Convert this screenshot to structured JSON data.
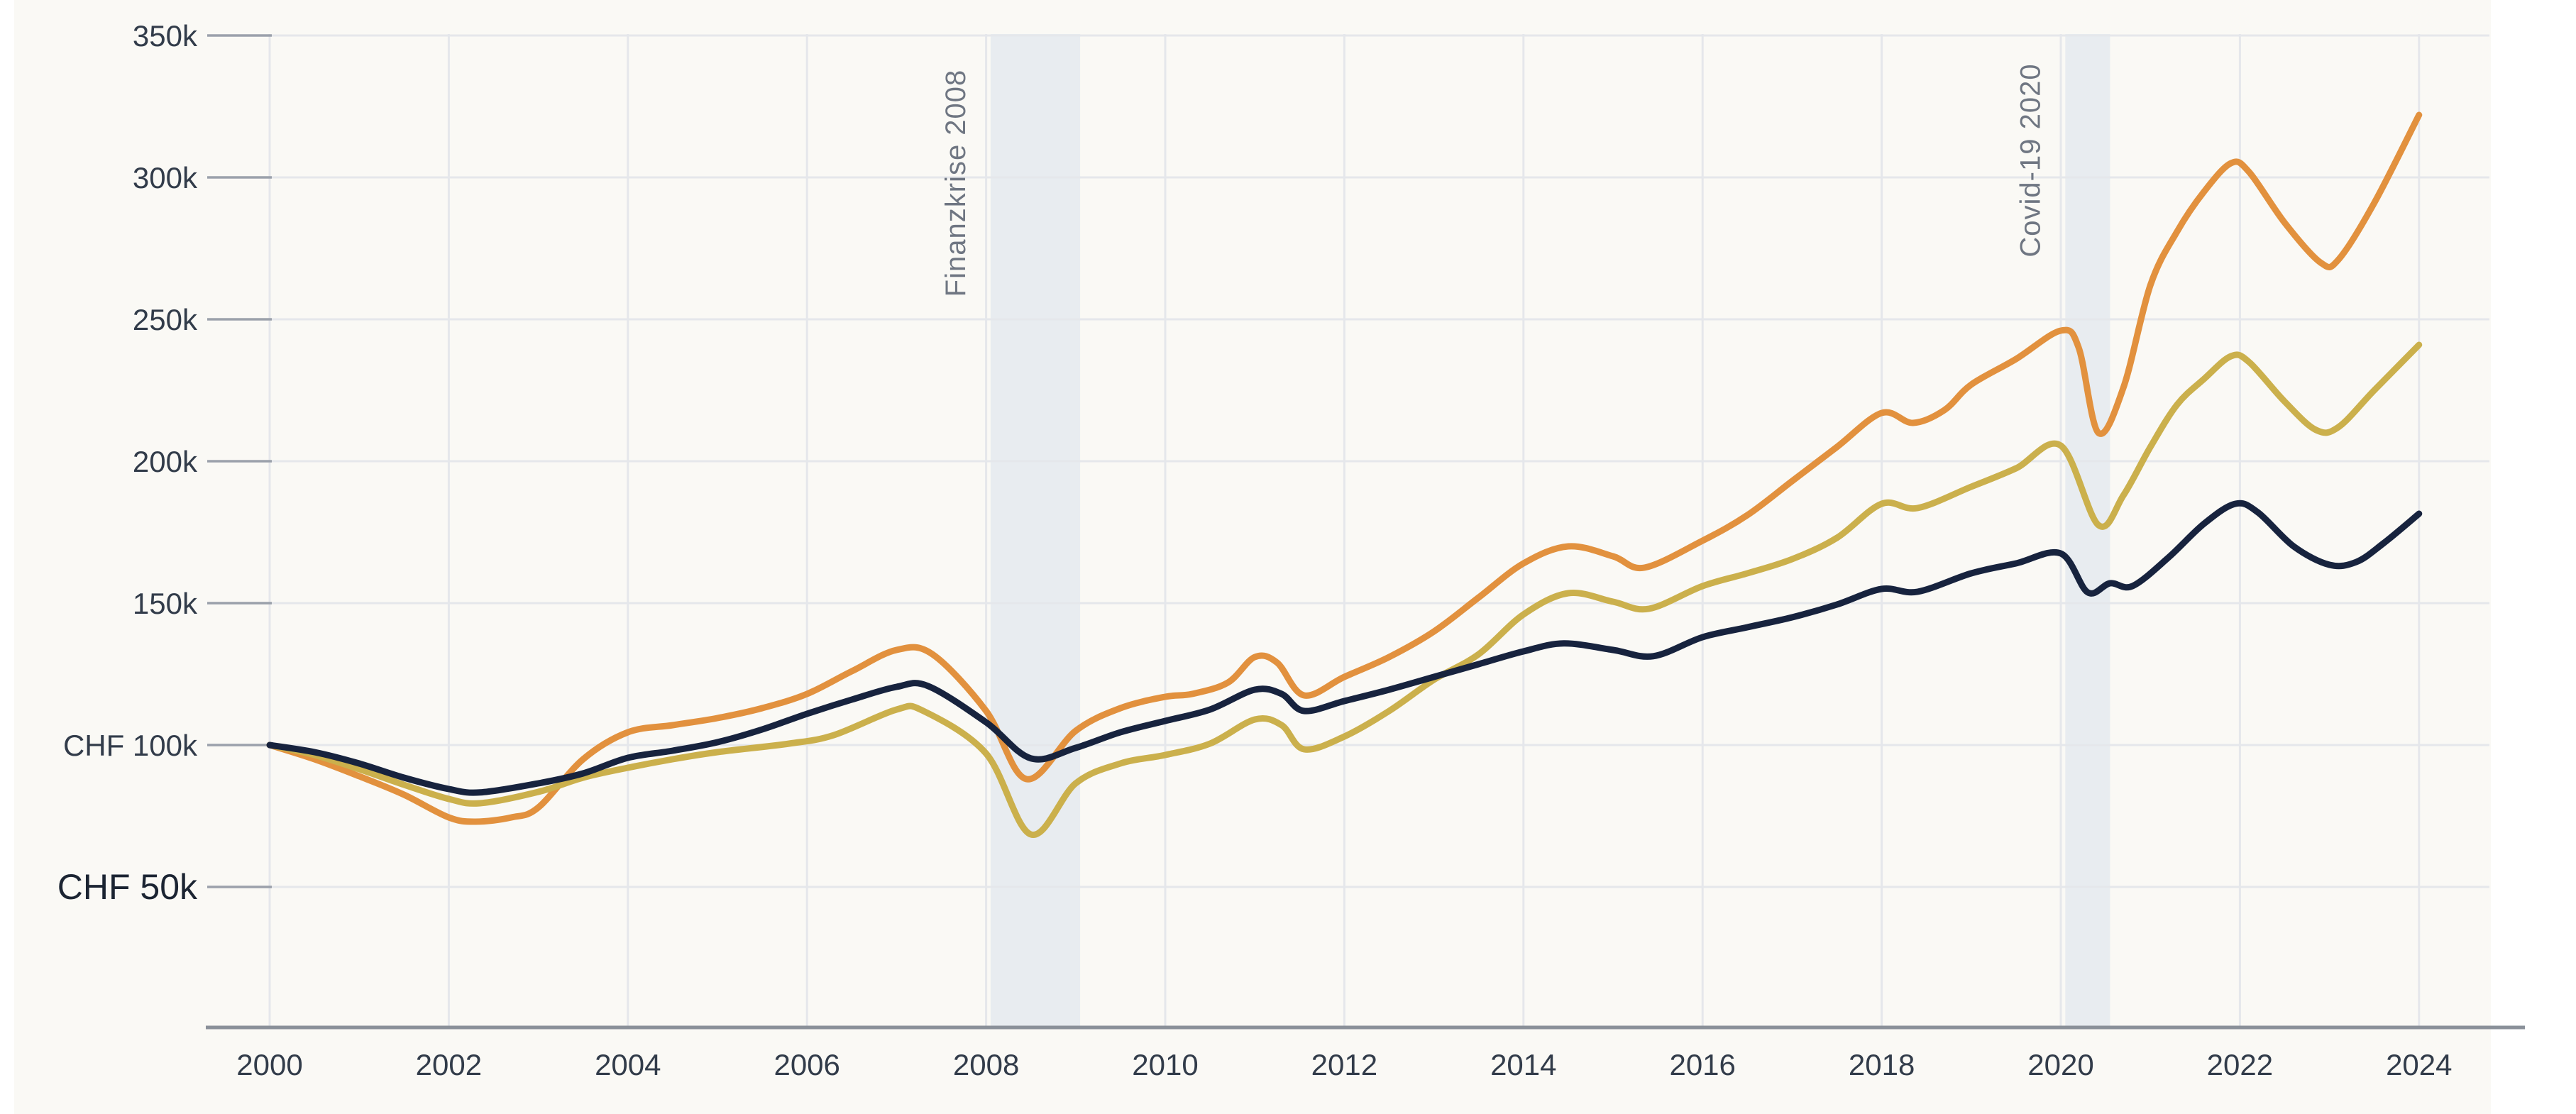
{
  "chart_data": {
    "type": "line",
    "title": "",
    "currency": "CHF",
    "y_axis": {
      "unit": "CHF (thousands)",
      "ticks": [
        {
          "label": "350k",
          "value": 350,
          "emphasis": false
        },
        {
          "label": "300k",
          "value": 300,
          "emphasis": false
        },
        {
          "label": "250k",
          "value": 250,
          "emphasis": false
        },
        {
          "label": "200k",
          "value": 200,
          "emphasis": false
        },
        {
          "label": "150k",
          "value": 150,
          "emphasis": false
        },
        {
          "label": "CHF 100k",
          "value": 100,
          "emphasis": false
        },
        {
          "label": "CHF 50k",
          "value": 50,
          "emphasis": true
        }
      ],
      "range": [
        0,
        360
      ]
    },
    "x_axis": {
      "ticks": [
        {
          "label": "2000",
          "value": 2000
        },
        {
          "label": "2002",
          "value": 2002
        },
        {
          "label": "2004",
          "value": 2004
        },
        {
          "label": "2006",
          "value": 2006
        },
        {
          "label": "2008",
          "value": 2008
        },
        {
          "label": "2010",
          "value": 2010
        },
        {
          "label": "2012",
          "value": 2012
        },
        {
          "label": "2014",
          "value": 2014
        },
        {
          "label": "2016",
          "value": 2016
        },
        {
          "label": "2018",
          "value": 2018
        },
        {
          "label": "2020",
          "value": 2020
        },
        {
          "label": "2022",
          "value": 2022
        },
        {
          "label": "2024",
          "value": 2024
        }
      ],
      "range": [
        2000,
        2024
      ]
    },
    "grid": true,
    "legend": "none",
    "annotations": [
      {
        "id": "finanzkrise",
        "label": "Finanzkrise 2008",
        "band": [
          2008.05,
          2009.05
        ]
      },
      {
        "id": "covid",
        "label": "Covid-19 2020",
        "band": [
          2020.05,
          2020.55
        ]
      }
    ],
    "colors": {
      "orange": "#e2913e",
      "ochre": "#cbb04c",
      "navy": "#17233e",
      "band": "#e8ecf0",
      "grid": "#e5e7eb",
      "tick": "#9ba1ab",
      "axis": "#8a9099"
    },
    "series": [
      {
        "id": "orange",
        "color_key": "orange",
        "points": [
          [
            2000,
            100
          ],
          [
            2000.5,
            95
          ],
          [
            2001,
            89
          ],
          [
            2001.5,
            82.5
          ],
          [
            2002,
            74.5
          ],
          [
            2002.3,
            73
          ],
          [
            2002.7,
            74.5
          ],
          [
            2003,
            78
          ],
          [
            2003.5,
            95
          ],
          [
            2004,
            104.5
          ],
          [
            2004.5,
            107
          ],
          [
            2005,
            109.5
          ],
          [
            2005.5,
            113
          ],
          [
            2006,
            118
          ],
          [
            2006.5,
            126
          ],
          [
            2007,
            133.5
          ],
          [
            2007.4,
            132
          ],
          [
            2008,
            112
          ],
          [
            2008.45,
            88
          ],
          [
            2009,
            105
          ],
          [
            2009.5,
            113
          ],
          [
            2010,
            117
          ],
          [
            2010.3,
            118
          ],
          [
            2010.7,
            122
          ],
          [
            2011,
            131
          ],
          [
            2011.25,
            129
          ],
          [
            2011.55,
            117.5
          ],
          [
            2012,
            124
          ],
          [
            2012.5,
            131
          ],
          [
            2013,
            140
          ],
          [
            2013.5,
            152
          ],
          [
            2014,
            164
          ],
          [
            2014.5,
            170
          ],
          [
            2015,
            166.5
          ],
          [
            2015.35,
            162.5
          ],
          [
            2016,
            172
          ],
          [
            2016.5,
            181
          ],
          [
            2017,
            193
          ],
          [
            2017.5,
            205
          ],
          [
            2018,
            217
          ],
          [
            2018.35,
            213.5
          ],
          [
            2018.7,
            218
          ],
          [
            2019,
            227
          ],
          [
            2019.5,
            236
          ],
          [
            2020,
            246
          ],
          [
            2020.2,
            240
          ],
          [
            2020.42,
            210
          ],
          [
            2020.7,
            226
          ],
          [
            2021,
            262
          ],
          [
            2021.3,
            281
          ],
          [
            2021.6,
            295
          ],
          [
            2021.9,
            305
          ],
          [
            2022.1,
            302
          ],
          [
            2022.5,
            284
          ],
          [
            2022.9,
            270
          ],
          [
            2023.1,
            271
          ],
          [
            2023.5,
            291
          ],
          [
            2024,
            322
          ]
        ]
      },
      {
        "id": "ochre",
        "color_key": "ochre",
        "points": [
          [
            2000,
            100
          ],
          [
            2000.5,
            96.5
          ],
          [
            2001,
            91.5
          ],
          [
            2001.5,
            86
          ],
          [
            2002,
            81
          ],
          [
            2002.35,
            79.5
          ],
          [
            2003,
            83.5
          ],
          [
            2003.5,
            88.5
          ],
          [
            2004,
            92
          ],
          [
            2004.5,
            95
          ],
          [
            2005,
            97.5
          ],
          [
            2005.8,
            100.5
          ],
          [
            2006.3,
            103.5
          ],
          [
            2007,
            112.5
          ],
          [
            2007.3,
            112
          ],
          [
            2008,
            97
          ],
          [
            2008.5,
            68.5
          ],
          [
            2009,
            86.5
          ],
          [
            2009.5,
            93.5
          ],
          [
            2010,
            96.5
          ],
          [
            2010.5,
            100.5
          ],
          [
            2011,
            109
          ],
          [
            2011.3,
            107
          ],
          [
            2011.55,
            98.5
          ],
          [
            2012,
            103
          ],
          [
            2012.5,
            112
          ],
          [
            2013,
            123
          ],
          [
            2013.5,
            132
          ],
          [
            2014,
            146
          ],
          [
            2014.5,
            153.5
          ],
          [
            2015,
            150.5
          ],
          [
            2015.4,
            148
          ],
          [
            2016,
            156
          ],
          [
            2016.5,
            160.5
          ],
          [
            2017,
            165.5
          ],
          [
            2017.5,
            173
          ],
          [
            2018,
            185
          ],
          [
            2018.4,
            183.5
          ],
          [
            2019,
            191
          ],
          [
            2019.5,
            197.5
          ],
          [
            2020,
            205.5
          ],
          [
            2020.42,
            177.5
          ],
          [
            2020.7,
            188
          ],
          [
            2021,
            205
          ],
          [
            2021.3,
            220
          ],
          [
            2021.6,
            229
          ],
          [
            2021.9,
            237
          ],
          [
            2022.1,
            235
          ],
          [
            2022.5,
            221
          ],
          [
            2022.85,
            211
          ],
          [
            2023.1,
            212
          ],
          [
            2023.5,
            225
          ],
          [
            2024,
            241
          ]
        ]
      },
      {
        "id": "navy",
        "color_key": "navy",
        "points": [
          [
            2000,
            100
          ],
          [
            2000.5,
            97.5
          ],
          [
            2001,
            93.5
          ],
          [
            2001.5,
            88.5
          ],
          [
            2002,
            84.5
          ],
          [
            2002.35,
            83.3
          ],
          [
            2003,
            86.5
          ],
          [
            2003.5,
            90
          ],
          [
            2004,
            95.5
          ],
          [
            2004.5,
            98
          ],
          [
            2005,
            101
          ],
          [
            2005.5,
            105.5
          ],
          [
            2006,
            111
          ],
          [
            2006.5,
            116
          ],
          [
            2007,
            120.5
          ],
          [
            2007.35,
            120.8
          ],
          [
            2008,
            108
          ],
          [
            2008.5,
            95.3
          ],
          [
            2009,
            99
          ],
          [
            2009.5,
            104.5
          ],
          [
            2010,
            108.5
          ],
          [
            2010.5,
            112.5
          ],
          [
            2011,
            119.5
          ],
          [
            2011.3,
            118
          ],
          [
            2011.55,
            112
          ],
          [
            2012,
            115.5
          ],
          [
            2012.5,
            119.5
          ],
          [
            2013,
            124
          ],
          [
            2013.5,
            128.5
          ],
          [
            2014,
            133
          ],
          [
            2014.45,
            135.8
          ],
          [
            2015,
            133.5
          ],
          [
            2015.45,
            131.3
          ],
          [
            2016,
            138
          ],
          [
            2016.5,
            141.5
          ],
          [
            2017,
            145
          ],
          [
            2017.5,
            149.5
          ],
          [
            2018,
            155
          ],
          [
            2018.4,
            154
          ],
          [
            2019,
            160.5
          ],
          [
            2019.5,
            164
          ],
          [
            2020,
            167.5
          ],
          [
            2020.3,
            153.8
          ],
          [
            2020.55,
            157
          ],
          [
            2020.8,
            156
          ],
          [
            2021.2,
            166
          ],
          [
            2021.6,
            178
          ],
          [
            2021.95,
            185
          ],
          [
            2022.2,
            182
          ],
          [
            2022.6,
            170
          ],
          [
            2023,
            163.5
          ],
          [
            2023.3,
            164.5
          ],
          [
            2023.6,
            171
          ],
          [
            2024,
            181.5
          ]
        ]
      }
    ]
  }
}
